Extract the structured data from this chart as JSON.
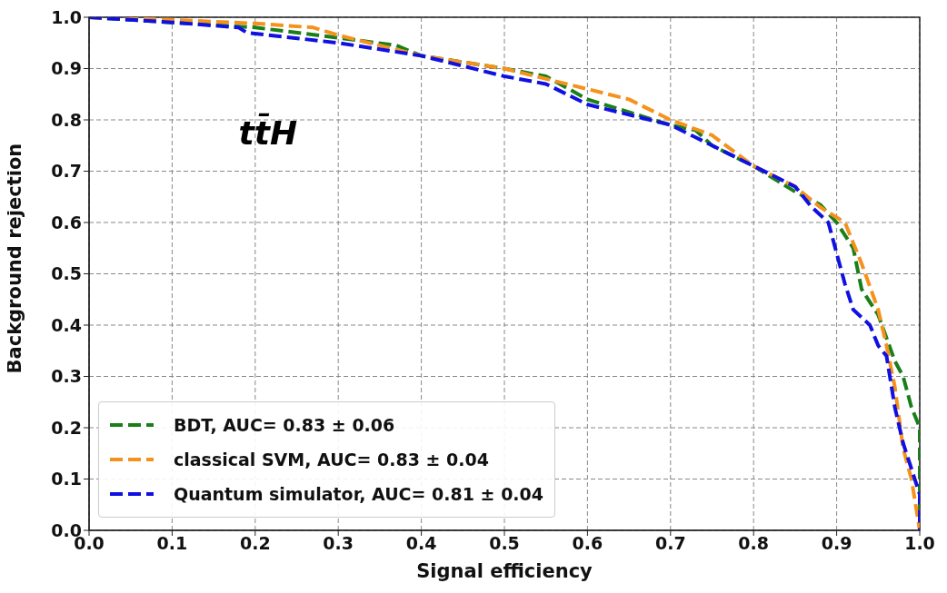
{
  "chart_data": {
    "type": "line",
    "xlabel": "Signal efficiency",
    "ylabel": "Background rejection",
    "annotations": [
      "tt̄H"
    ],
    "xlim": [
      0,
      1
    ],
    "ylim": [
      0,
      1
    ],
    "xticks": [
      {
        "value": 0,
        "label": "0.0"
      },
      0.1,
      0.2,
      0.3,
      0.4,
      0.5,
      0.6,
      0.7,
      0.8,
      0.9,
      {
        "value": 1,
        "label": "1.0"
      }
    ],
    "yticks": [
      {
        "value": 0,
        "label": "0.0"
      },
      0.1,
      0.2,
      0.3,
      0.4,
      0.5,
      0.6,
      0.7,
      0.8,
      0.9,
      {
        "value": 1,
        "label": "1.0"
      }
    ],
    "grid": true,
    "legend": "bottom left",
    "line_style": "dashed",
    "marker": "none",
    "series": [
      {
        "name": "BDT, AUC= 0.83 ± 0.06",
        "color": "#1a7f1a",
        "x": [
          0,
          0.1,
          0.2,
          0.3,
          0.37,
          0.4,
          0.5,
          0.55,
          0.6,
          0.7,
          0.73,
          0.75,
          0.8,
          0.85,
          0.88,
          0.9,
          0.92,
          0.93,
          0.95,
          0.97,
          0.98,
          0.99,
          1.0,
          1.0
        ],
        "values": [
          1,
          0.99,
          0.98,
          0.96,
          0.945,
          0.925,
          0.9,
          0.885,
          0.84,
          0.79,
          0.78,
          0.75,
          0.71,
          0.66,
          0.635,
          0.6,
          0.55,
          0.47,
          0.42,
          0.33,
          0.3,
          0.24,
          0.2,
          0
        ]
      },
      {
        "name": "classical SVM, AUC= 0.83 ± 0.04",
        "color": "#f5921e",
        "x": [
          0,
          0.1,
          0.2,
          0.27,
          0.3,
          0.4,
          0.5,
          0.6,
          0.65,
          0.7,
          0.75,
          0.8,
          0.85,
          0.88,
          0.91,
          0.93,
          0.95,
          0.96,
          0.97,
          0.98,
          0.99,
          1.0
        ],
        "values": [
          1,
          0.995,
          0.988,
          0.98,
          0.965,
          0.925,
          0.9,
          0.86,
          0.84,
          0.8,
          0.77,
          0.71,
          0.67,
          0.63,
          0.6,
          0.52,
          0.43,
          0.36,
          0.28,
          0.16,
          0.1,
          0
        ]
      },
      {
        "name": "Quantum simulator, AUC= 0.81 ± 0.04",
        "color": "#1010e0",
        "x": [
          0,
          0.1,
          0.18,
          0.19,
          0.3,
          0.36,
          0.4,
          0.5,
          0.55,
          0.6,
          0.7,
          0.8,
          0.85,
          0.87,
          0.89,
          0.9,
          0.91,
          0.92,
          0.94,
          0.95,
          0.96,
          0.97,
          0.98,
          0.99,
          1.0,
          1.0
        ],
        "values": [
          1,
          0.99,
          0.98,
          0.97,
          0.95,
          0.935,
          0.925,
          0.885,
          0.87,
          0.83,
          0.79,
          0.71,
          0.67,
          0.63,
          0.6,
          0.54,
          0.48,
          0.43,
          0.4,
          0.36,
          0.34,
          0.24,
          0.17,
          0.12,
          0.07,
          0
        ]
      }
    ]
  }
}
